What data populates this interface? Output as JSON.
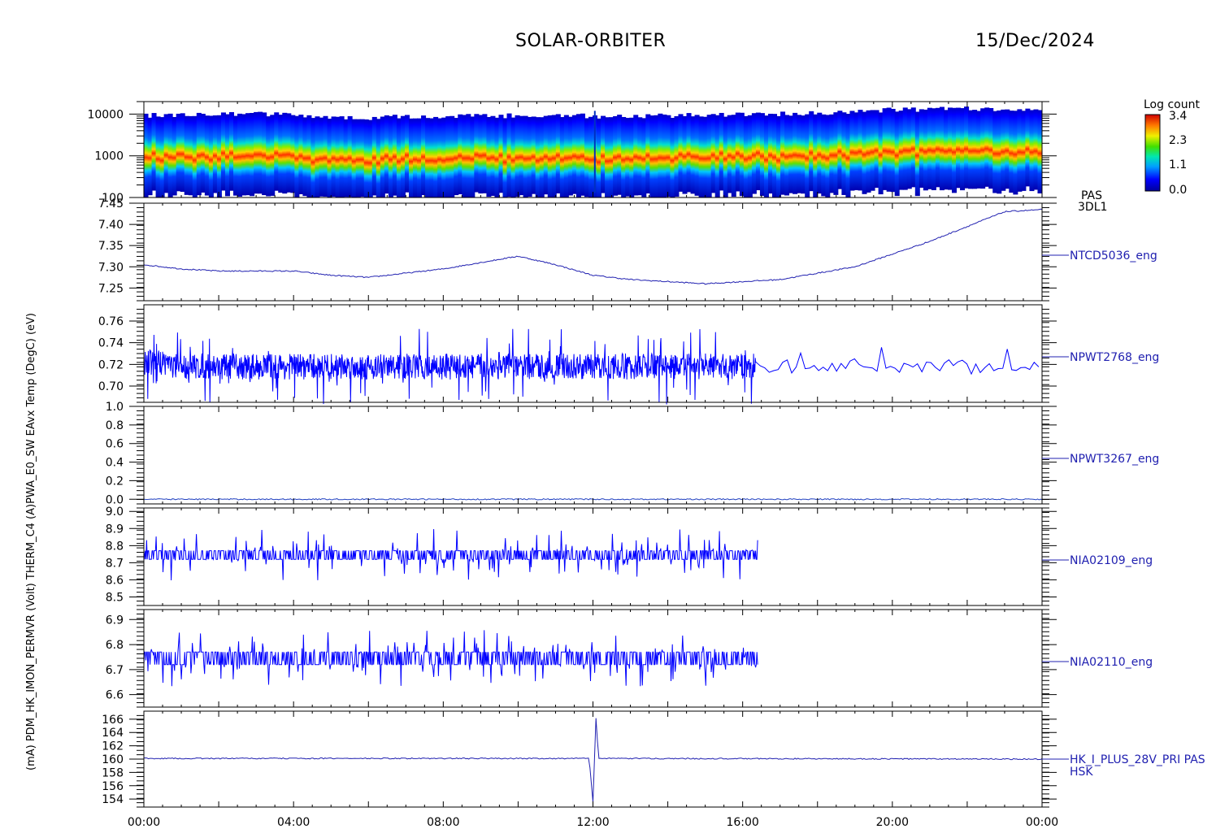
{
  "header": {
    "title": "SOLAR-ORBITER",
    "date": "15/Dec/2024"
  },
  "left_axis_label": "(mA) PDM_HK_IMON_PERMVR (Volt) THERM_C4 (A)PWA_E0_SW EAvx Temp (DegC) (eV)",
  "colorbar": {
    "title": "Log count",
    "ticks": [
      "3.4",
      "2.3",
      "1.1",
      "0.0"
    ],
    "range": [
      0.0,
      3.4
    ]
  },
  "x_ticks": [
    "00:00",
    "04:00",
    "08:00",
    "12:00",
    "16:00",
    "20:00",
    "00:00"
  ],
  "chart_data": [
    {
      "type": "heatmap",
      "panel": "spectrogram",
      "ylabel": "(eV)",
      "y_scale": "log",
      "ylim": [
        100,
        20000
      ],
      "y_ticks": [
        "10000",
        "1000",
        "100"
      ],
      "right_labels": [
        "PAS",
        "3DL1"
      ],
      "peak_energy_ev": {
        "x_hours": [
          0,
          2,
          4,
          5,
          5.5,
          7,
          10,
          11.5,
          12,
          14,
          16,
          18,
          19,
          20,
          22,
          24
        ],
        "values": [
          1000,
          1150,
          1050,
          900,
          850,
          950,
          1000,
          1050,
          900,
          1000,
          1050,
          1150,
          1250,
          1400,
          1450,
          1500
        ]
      }
    },
    {
      "type": "line",
      "panel": "NTCD5036_eng",
      "name": "NTCD5036_eng",
      "ylim": [
        7.22,
        7.45
      ],
      "y_ticks": [
        "7.45",
        "7.40",
        "7.35",
        "7.30",
        "7.25"
      ],
      "x_hours": [
        0,
        1,
        2,
        3,
        4,
        5,
        6,
        7,
        8,
        9,
        10,
        11,
        12,
        13,
        14,
        15,
        16,
        17,
        18,
        19,
        20,
        21,
        22,
        23,
        24
      ],
      "values": [
        7.305,
        7.295,
        7.29,
        7.29,
        7.29,
        7.28,
        7.275,
        7.285,
        7.295,
        7.31,
        7.325,
        7.305,
        7.28,
        7.27,
        7.265,
        7.26,
        7.265,
        7.27,
        7.285,
        7.3,
        7.33,
        7.36,
        7.395,
        7.43,
        7.435
      ]
    },
    {
      "type": "line",
      "panel": "NPWT2768_eng",
      "name": "NPWT2768_eng",
      "ylim": [
        0.685,
        0.775
      ],
      "y_ticks": [
        "0.76",
        "0.74",
        "0.72",
        "0.70"
      ],
      "dense_until_hour": 16.35,
      "baseline": 0.718,
      "x_hours": [
        0,
        1,
        2,
        3,
        4,
        5,
        6,
        7,
        8,
        9,
        10,
        11,
        12,
        13,
        14,
        15,
        16,
        16.3,
        17,
        18,
        19,
        20,
        21,
        22,
        23,
        24
      ],
      "values": [
        0.722,
        0.72,
        0.72,
        0.718,
        0.718,
        0.718,
        0.718,
        0.718,
        0.718,
        0.719,
        0.72,
        0.719,
        0.719,
        0.719,
        0.719,
        0.719,
        0.719,
        0.719,
        0.716,
        0.718,
        0.72,
        0.717,
        0.719,
        0.716,
        0.72,
        0.718
      ]
    },
    {
      "type": "line",
      "panel": "NPWT3267_eng",
      "name": "NPWT3267_eng",
      "ylim": [
        -0.05,
        1.0
      ],
      "y_ticks": [
        "1.0",
        "0.8",
        "0.6",
        "0.4",
        "0.2",
        "0.0"
      ],
      "x_hours": [
        0,
        24
      ],
      "values": [
        0.0,
        0.0
      ]
    },
    {
      "type": "line",
      "panel": "NIA02109_eng",
      "name": "NIA02109_eng",
      "ylim": [
        8.45,
        9.02
      ],
      "y_ticks": [
        "9.0",
        "8.9",
        "8.8",
        "8.7",
        "8.6",
        "8.5"
      ],
      "data_end_hour": 16.4,
      "levels": [
        8.72,
        8.77
      ],
      "x_hours": [
        0,
        2,
        4,
        6,
        8,
        10,
        12,
        14,
        16,
        16.4
      ],
      "values": [
        8.74,
        8.74,
        8.74,
        8.74,
        8.75,
        8.76,
        8.74,
        8.73,
        8.73,
        8.72
      ]
    },
    {
      "type": "line",
      "panel": "NIA02110_eng",
      "name": "NIA02110_eng",
      "ylim": [
        6.55,
        6.94
      ],
      "y_ticks": [
        "6.9",
        "6.8",
        "6.7",
        "6.6"
      ],
      "data_end_hour": 16.4,
      "levels": [
        6.72,
        6.77
      ],
      "x_hours": [
        0,
        2,
        4,
        6,
        8,
        10,
        12,
        14,
        16,
        16.4
      ],
      "values": [
        6.745,
        6.745,
        6.745,
        6.745,
        6.745,
        6.745,
        6.745,
        6.745,
        6.745,
        6.73
      ]
    },
    {
      "type": "line",
      "panel": "HK_I_PLUS_28V_PRI",
      "name": "HK_I_PLUS_28V_PRI PAS",
      "ylim": [
        152.8,
        167.2
      ],
      "y_ticks": [
        "166",
        "164",
        "162",
        "160",
        "158",
        "156",
        "154"
      ],
      "right_labels": [
        "HK_I_PLUS_28V_PRI PAS",
        "HSK"
      ],
      "x_hours": [
        0,
        11.9,
        12.0,
        12.08,
        12.15,
        12.2,
        24
      ],
      "values": [
        160.1,
        160.1,
        153.5,
        166.1,
        160.2,
        160.1,
        160.0
      ]
    }
  ]
}
